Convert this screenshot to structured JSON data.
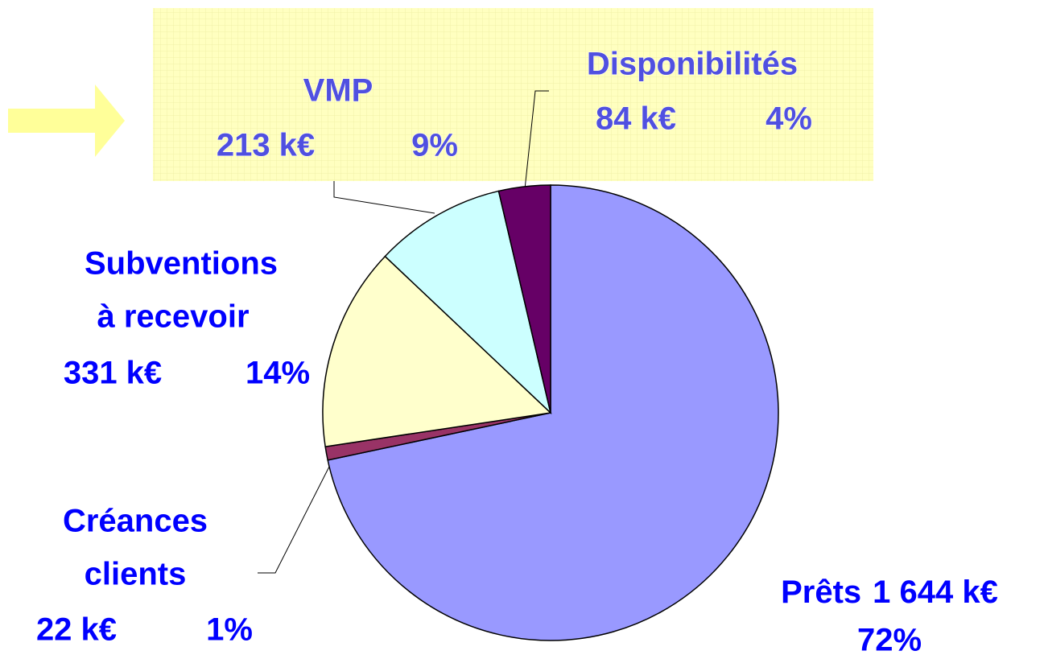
{
  "chart_data": {
    "type": "pie",
    "categories": [
      [
        "Prêts"
      ],
      [
        "Créances",
        "clients"
      ],
      [
        "Subventions",
        "à recevoir"
      ],
      [
        "VMP"
      ],
      [
        "Disponibilités"
      ]
    ],
    "values": [
      1644,
      22,
      331,
      213,
      84
    ],
    "value_labels": [
      "1 644 k€",
      "22 k€",
      "331 k€",
      "213 k€",
      "84 k€"
    ],
    "percents": [
      72,
      1,
      14,
      9,
      4
    ],
    "percent_labels": [
      "72%",
      "1%",
      "14%",
      "9%",
      "4%"
    ],
    "colors": [
      "#9999ff",
      "#993366",
      "#ffffcc",
      "#ccffff",
      "#660066"
    ]
  }
}
